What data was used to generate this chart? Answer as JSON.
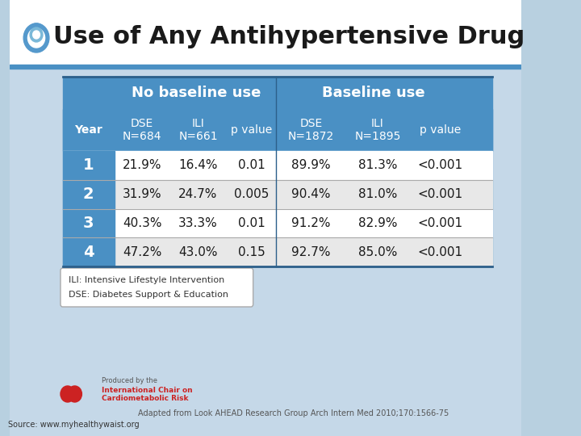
{
  "title": "Use of Any Antihypertensive Drug",
  "title_fontsize": 22,
  "title_color": "#1a1a1a",
  "background_top": "#ffffff",
  "background_bottom": "#c5d8e8",
  "header_bg": "#4a90c4",
  "header_text_color": "#ffffff",
  "row_colors": [
    "#ffffff",
    "#e8e8e8"
  ],
  "table_border_color": "#2c5f8a",
  "col_headers": [
    "Year",
    "DSE\nN=684",
    "ILI\nN=661",
    "p value",
    "DSE\nN=1872",
    "ILI\nN=1895",
    "p value"
  ],
  "group_headers": [
    "No baseline use",
    "Baseline use"
  ],
  "rows": [
    [
      "1",
      "21.9%",
      "16.4%",
      "0.01",
      "89.9%",
      "81.3%",
      "<0.001"
    ],
    [
      "2",
      "31.9%",
      "24.7%",
      "0.005",
      "90.4%",
      "81.0%",
      "<0.001"
    ],
    [
      "3",
      "40.3%",
      "33.3%",
      "0.01",
      "91.2%",
      "82.9%",
      "<0.001"
    ],
    [
      "4",
      "47.2%",
      "43.0%",
      "0.15",
      "92.7%",
      "85.0%",
      "<0.001"
    ]
  ],
  "footnote1": "ILI: Intensive Lifestyle Intervention",
  "footnote2": "DSE: Diabetes Support & Education",
  "source_text": "Adapted from Look AHEAD Research Group Arch Intern Med 2010;170:1566-75",
  "source_bottom": "Source: www.myhealthywaist.org",
  "year_col_color": "#4a90c4",
  "year_text_color": "#ffffff"
}
